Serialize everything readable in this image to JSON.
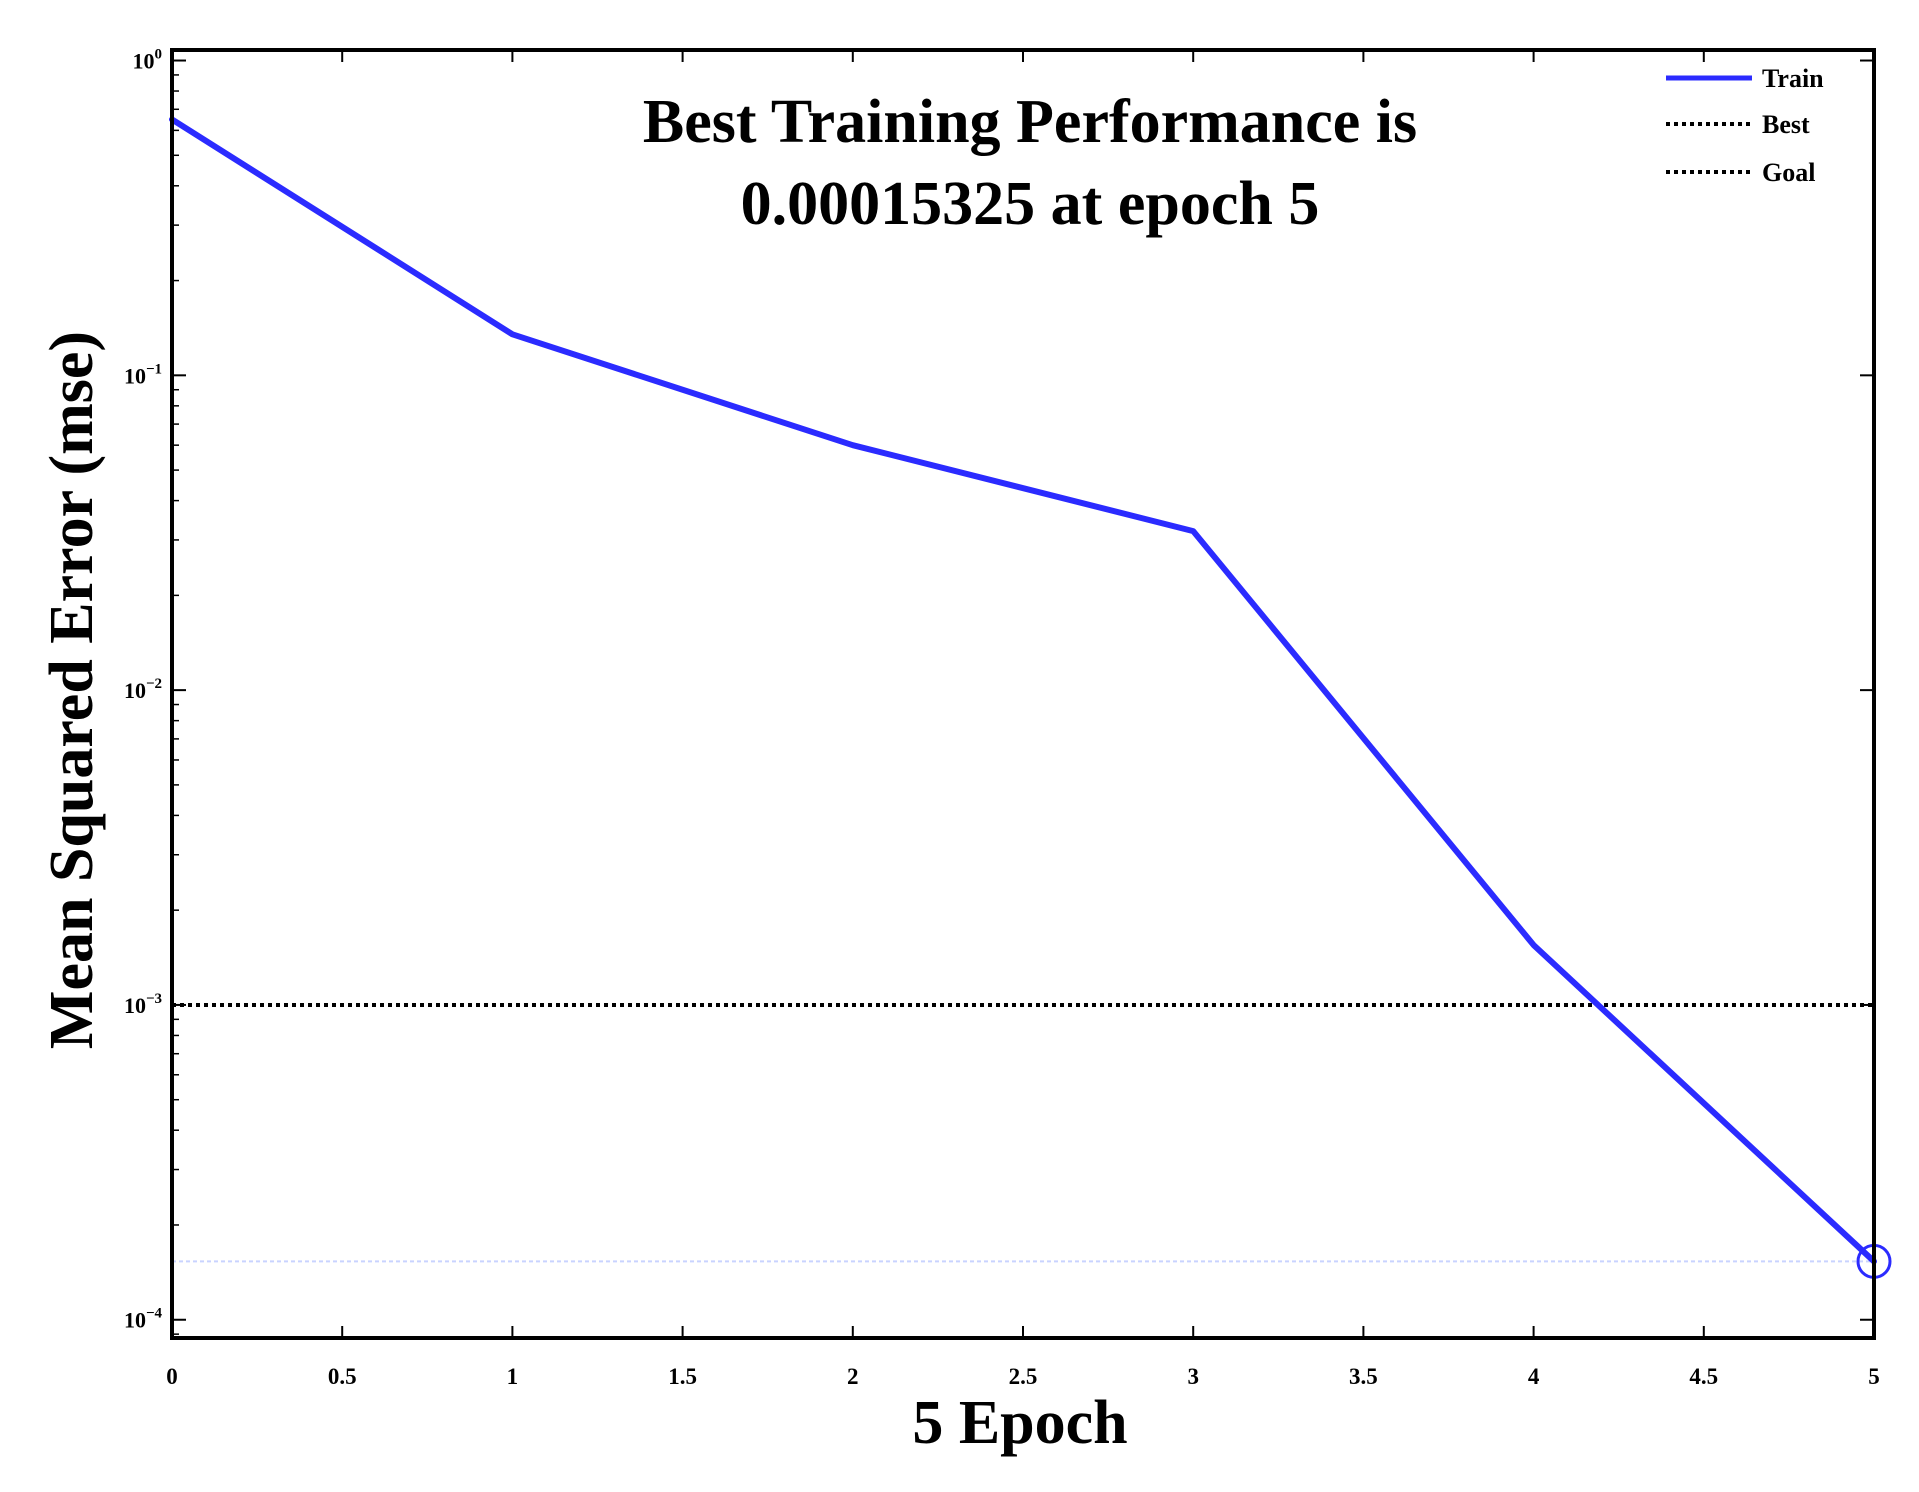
{
  "chart_data": {
    "type": "line",
    "title_line1": "Best Training Performance is",
    "title_line2": "0.00015325 at epoch 5",
    "xlabel": "5 Epoch",
    "ylabel": "Mean Squared Error  (mse)",
    "x_ticks": [
      "0",
      "0.5",
      "1",
      "1.5",
      "2",
      "2.5",
      "3",
      "3.5",
      "4",
      "4.5",
      "5"
    ],
    "x_tick_values": [
      0,
      0.5,
      1,
      1.5,
      2,
      2.5,
      3,
      3.5,
      4,
      4.5,
      5
    ],
    "y_tick_exponents": [
      0,
      -1,
      -2,
      -3,
      -4
    ],
    "y_tick_base": "10",
    "xlim": [
      0,
      5
    ],
    "ylim": [
      8.75e-05,
      1.08
    ],
    "y_scale": "log",
    "grid": false,
    "legend_position": "top-right",
    "series": [
      {
        "name": "Train",
        "style": "solid",
        "color": "#2b2bff",
        "x": [
          0,
          1,
          2,
          3,
          4,
          5
        ],
        "y": [
          0.65,
          0.135,
          0.06,
          0.032,
          0.00155,
          0.00015325
        ]
      },
      {
        "name": "Best",
        "style": "dotted",
        "color": "#000000",
        "vertical_x": 5,
        "horizontal_y": 0.00015325
      },
      {
        "name": "Goal",
        "style": "dotted",
        "color": "#000000",
        "y": 0.001
      }
    ],
    "best_marker": {
      "x": 5,
      "y": 0.00015325
    }
  }
}
